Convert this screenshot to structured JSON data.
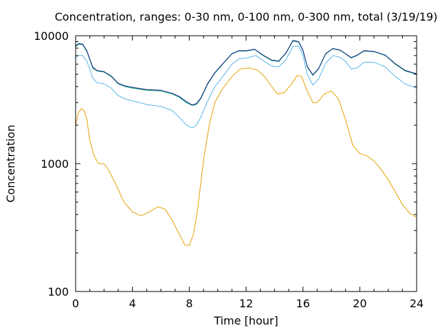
{
  "chart_data": {
    "type": "line",
    "title": "Concentration, ranges: 0-30 nm, 0-100 nm, 0-300 nm, total (3/19/19)",
    "xlabel": "Time [hour]",
    "ylabel": "Concentration",
    "xlim": [
      0,
      24
    ],
    "ylim": [
      100,
      10000
    ],
    "y_scale": "log",
    "x_ticks": [
      0,
      4,
      8,
      12,
      16,
      20,
      24
    ],
    "y_ticks": [
      100,
      1000,
      10000
    ],
    "x_tick_labels": [
      "0",
      "4",
      "8",
      "12",
      "16",
      "20",
      "24"
    ],
    "y_tick_labels": [
      "100",
      "1000",
      "10000"
    ],
    "grid": false,
    "legend": "none",
    "series": [
      {
        "color": "#e69f00",
        "points": [
          [
            0,
            2000
          ],
          [
            0.2,
            2500
          ],
          [
            0.4,
            2700
          ],
          [
            0.6,
            2600
          ],
          [
            0.8,
            2200
          ],
          [
            1.0,
            1500
          ],
          [
            1.3,
            1150
          ],
          [
            1.6,
            1000
          ],
          [
            2.0,
            1000
          ],
          [
            2.3,
            900
          ],
          [
            2.8,
            700
          ],
          [
            3.4,
            500
          ],
          [
            4.0,
            420
          ],
          [
            4.6,
            390
          ],
          [
            5.2,
            420
          ],
          [
            5.8,
            460
          ],
          [
            6.3,
            440
          ],
          [
            6.8,
            360
          ],
          [
            7.3,
            280
          ],
          [
            7.7,
            230
          ],
          [
            8.0,
            230
          ],
          [
            8.3,
            280
          ],
          [
            8.6,
            450
          ],
          [
            9.0,
            1050
          ],
          [
            9.4,
            2000
          ],
          [
            9.8,
            3000
          ],
          [
            10.3,
            3800
          ],
          [
            11.0,
            4800
          ],
          [
            11.6,
            5500
          ],
          [
            12.2,
            5600
          ],
          [
            12.8,
            5400
          ],
          [
            13.3,
            4800
          ],
          [
            13.8,
            4000
          ],
          [
            14.2,
            3500
          ],
          [
            14.7,
            3600
          ],
          [
            15.2,
            4200
          ],
          [
            15.6,
            4900
          ],
          [
            15.9,
            4800
          ],
          [
            16.3,
            3700
          ],
          [
            16.7,
            3000
          ],
          [
            17.0,
            3000
          ],
          [
            17.5,
            3500
          ],
          [
            18.0,
            3700
          ],
          [
            18.5,
            3200
          ],
          [
            19.0,
            2200
          ],
          [
            19.5,
            1400
          ],
          [
            20.0,
            1200
          ],
          [
            20.5,
            1150
          ],
          [
            21.0,
            1050
          ],
          [
            21.5,
            900
          ],
          [
            22.0,
            750
          ],
          [
            22.5,
            600
          ],
          [
            23.0,
            480
          ],
          [
            23.5,
            410
          ],
          [
            24.0,
            380
          ]
        ]
      },
      {
        "color": "#56b4e9",
        "points": [
          [
            0,
            6700
          ],
          [
            0.2,
            7000
          ],
          [
            0.5,
            7000
          ],
          [
            0.8,
            6300
          ],
          [
            1.2,
            4700
          ],
          [
            1.5,
            4300
          ],
          [
            2.0,
            4200
          ],
          [
            2.5,
            3900
          ],
          [
            3.0,
            3400
          ],
          [
            3.5,
            3200
          ],
          [
            4.0,
            3100
          ],
          [
            5.0,
            2900
          ],
          [
            6.0,
            2800
          ],
          [
            6.8,
            2600
          ],
          [
            7.3,
            2300
          ],
          [
            7.8,
            2000
          ],
          [
            8.2,
            1900
          ],
          [
            8.5,
            2000
          ],
          [
            8.8,
            2300
          ],
          [
            9.3,
            3100
          ],
          [
            9.8,
            4000
          ],
          [
            10.3,
            4700
          ],
          [
            11.0,
            6000
          ],
          [
            11.5,
            6600
          ],
          [
            12.0,
            6700
          ],
          [
            12.7,
            7000
          ],
          [
            13.2,
            6400
          ],
          [
            13.8,
            5800
          ],
          [
            14.3,
            5700
          ],
          [
            14.8,
            6500
          ],
          [
            15.3,
            8300
          ],
          [
            15.7,
            8300
          ],
          [
            16.0,
            7000
          ],
          [
            16.3,
            5000
          ],
          [
            16.7,
            4100
          ],
          [
            17.1,
            4600
          ],
          [
            17.6,
            6100
          ],
          [
            18.1,
            7000
          ],
          [
            18.6,
            6800
          ],
          [
            19.0,
            6300
          ],
          [
            19.4,
            5500
          ],
          [
            19.8,
            5600
          ],
          [
            20.3,
            6200
          ],
          [
            21.0,
            6200
          ],
          [
            21.8,
            5700
          ],
          [
            22.5,
            4800
          ],
          [
            23.2,
            4200
          ],
          [
            24.0,
            3900
          ]
        ]
      },
      {
        "color": "#009e73",
        "points": [
          [
            0,
            8200
          ],
          [
            0.2,
            8600
          ],
          [
            0.5,
            8500
          ],
          [
            0.8,
            7500
          ],
          [
            1.2,
            5600
          ],
          [
            1.5,
            5300
          ],
          [
            2.0,
            5200
          ],
          [
            2.5,
            4800
          ],
          [
            3.0,
            4200
          ],
          [
            3.5,
            4000
          ],
          [
            4.0,
            3900
          ],
          [
            5.0,
            3750
          ],
          [
            6.0,
            3700
          ],
          [
            6.8,
            3500
          ],
          [
            7.3,
            3300
          ],
          [
            7.8,
            3000
          ],
          [
            8.2,
            2850
          ],
          [
            8.5,
            2900
          ],
          [
            8.8,
            3200
          ],
          [
            9.3,
            4200
          ],
          [
            9.8,
            5100
          ],
          [
            10.3,
            5900
          ],
          [
            11.0,
            7200
          ],
          [
            11.5,
            7600
          ],
          [
            12.0,
            7600
          ],
          [
            12.6,
            7800
          ],
          [
            13.2,
            7000
          ],
          [
            13.8,
            6400
          ],
          [
            14.3,
            6300
          ],
          [
            14.8,
            7300
          ],
          [
            15.3,
            9100
          ],
          [
            15.7,
            8900
          ],
          [
            16.0,
            7600
          ],
          [
            16.3,
            5700
          ],
          [
            16.7,
            4900
          ],
          [
            17.1,
            5500
          ],
          [
            17.6,
            7200
          ],
          [
            18.1,
            7900
          ],
          [
            18.6,
            7700
          ],
          [
            19.0,
            7200
          ],
          [
            19.4,
            6700
          ],
          [
            19.8,
            7000
          ],
          [
            20.3,
            7600
          ],
          [
            21.0,
            7500
          ],
          [
            21.8,
            7000
          ],
          [
            22.5,
            6000
          ],
          [
            23.2,
            5300
          ],
          [
            24.0,
            5000
          ]
        ]
      },
      {
        "color": "#1f2a8a",
        "points": [
          [
            0,
            8300
          ],
          [
            0.2,
            8700
          ],
          [
            0.5,
            8600
          ],
          [
            0.8,
            7600
          ],
          [
            1.2,
            5700
          ],
          [
            1.5,
            5350
          ],
          [
            2.0,
            5250
          ],
          [
            2.5,
            4850
          ],
          [
            3.0,
            4250
          ],
          [
            3.5,
            4050
          ],
          [
            4.0,
            3950
          ],
          [
            5.0,
            3800
          ],
          [
            6.0,
            3750
          ],
          [
            6.8,
            3550
          ],
          [
            7.3,
            3350
          ],
          [
            7.8,
            3050
          ],
          [
            8.2,
            2880
          ],
          [
            8.5,
            2950
          ],
          [
            8.8,
            3250
          ],
          [
            9.3,
            4250
          ],
          [
            9.8,
            5150
          ],
          [
            10.3,
            5950
          ],
          [
            11.0,
            7250
          ],
          [
            11.5,
            7650
          ],
          [
            12.0,
            7650
          ],
          [
            12.6,
            7850
          ],
          [
            13.2,
            7050
          ],
          [
            13.8,
            6450
          ],
          [
            14.3,
            6350
          ],
          [
            14.8,
            7350
          ],
          [
            15.3,
            9200
          ],
          [
            15.7,
            9000
          ],
          [
            16.0,
            7700
          ],
          [
            16.3,
            5750
          ],
          [
            16.7,
            4950
          ],
          [
            17.1,
            5550
          ],
          [
            17.6,
            7250
          ],
          [
            18.1,
            7950
          ],
          [
            18.6,
            7750
          ],
          [
            19.0,
            7250
          ],
          [
            19.4,
            6750
          ],
          [
            19.8,
            7050
          ],
          [
            20.3,
            7650
          ],
          [
            21.0,
            7550
          ],
          [
            21.8,
            7050
          ],
          [
            22.5,
            6050
          ],
          [
            23.2,
            5350
          ],
          [
            24.0,
            5050
          ]
        ]
      }
    ]
  }
}
